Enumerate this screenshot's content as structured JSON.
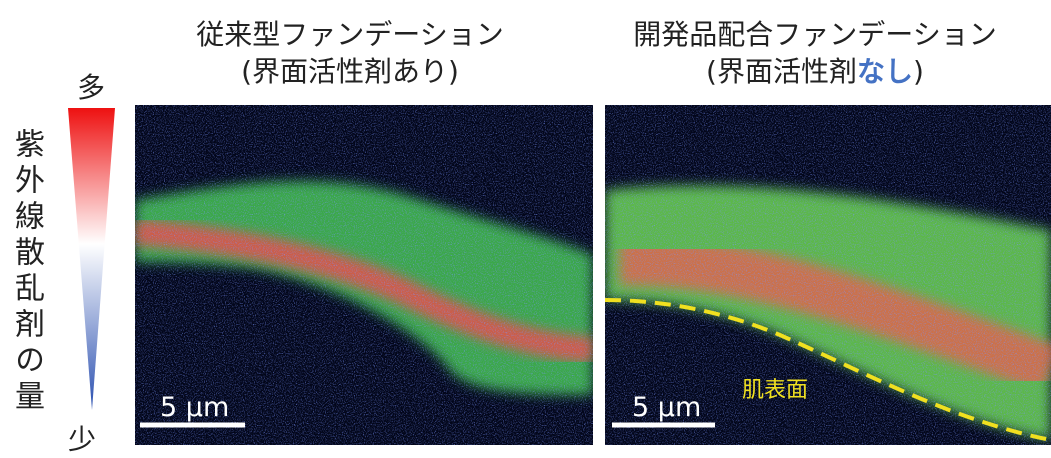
{
  "legend": {
    "high": "多",
    "low": "少",
    "label": "紫外線散乱剤の量"
  },
  "panels": [
    {
      "title": "従来型ファンデーション",
      "subtitle_parts": [
        "(界面活性剤あり)"
      ],
      "scale_bar": "5 µm"
    },
    {
      "title": "開発品配合ファンデーション",
      "subtitle_parts": [
        "(界面活性剤",
        "なし",
        ")"
      ],
      "scale_bar": "5 µm",
      "annotation": "肌表面"
    }
  ]
}
